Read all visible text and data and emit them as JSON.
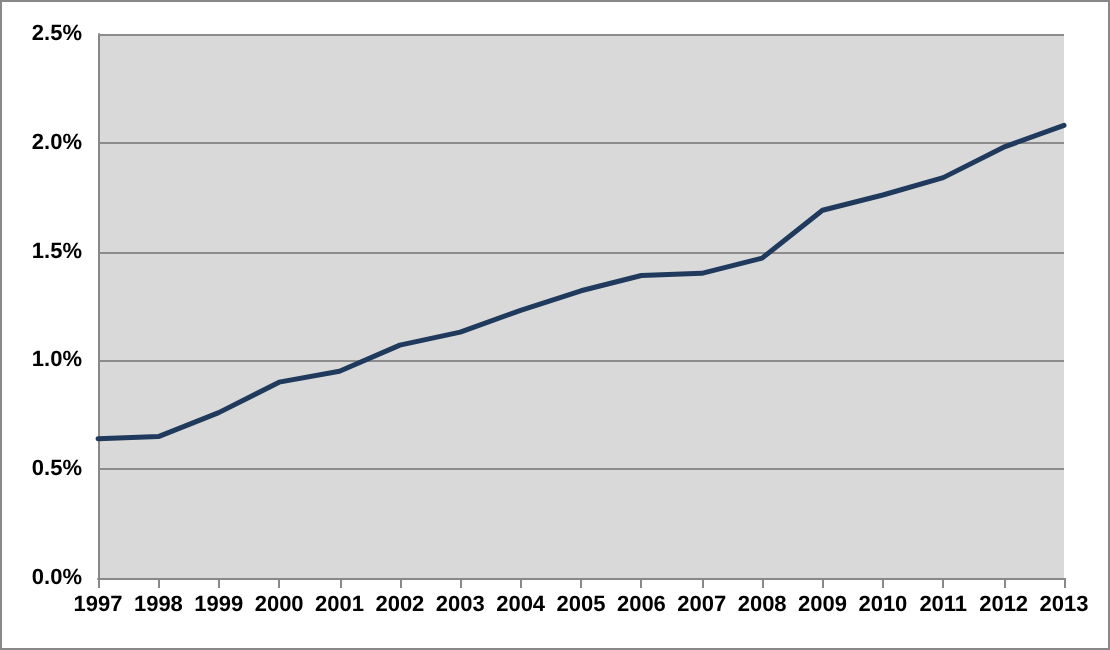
{
  "chart_data": {
    "type": "line",
    "categories": [
      "1997",
      "1998",
      "1999",
      "2000",
      "2001",
      "2002",
      "2003",
      "2004",
      "2005",
      "2006",
      "2007",
      "2008",
      "2009",
      "2010",
      "2011",
      "2012",
      "2013"
    ],
    "series": [
      {
        "color": "#1f3a5c",
        "values": [
          0.64,
          0.65,
          0.76,
          0.9,
          0.95,
          1.07,
          1.13,
          1.23,
          1.32,
          1.39,
          1.4,
          1.47,
          1.69,
          1.76,
          1.84,
          1.98,
          2.08
        ]
      }
    ],
    "ylim": [
      0,
      2.5
    ],
    "yticks": [
      {
        "value": 0,
        "label": "0.0%"
      },
      {
        "value": 0.5,
        "label": "0.5%"
      },
      {
        "value": 1,
        "label": "1.0%"
      },
      {
        "value": 1.5,
        "label": "1.5%"
      },
      {
        "value": 2,
        "label": "2.0%"
      },
      {
        "value": 2.5,
        "label": "2.5%"
      }
    ],
    "grid": "y",
    "marker": "none",
    "line_style": "solid"
  }
}
